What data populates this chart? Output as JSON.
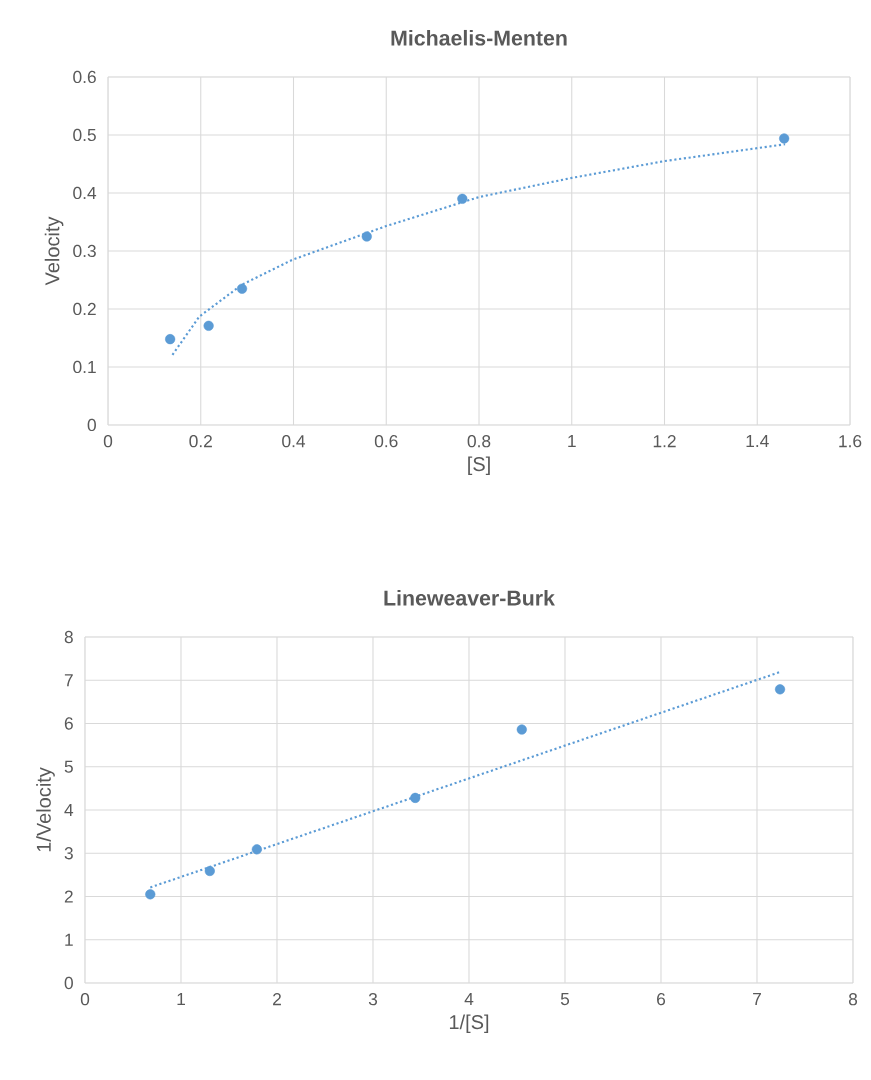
{
  "chart_data": [
    {
      "type": "scatter",
      "title": "Michaelis-Menten",
      "xlabel": "[S]",
      "ylabel": "Velocity",
      "xlim": [
        0,
        1.6
      ],
      "ylim": [
        0,
        0.6
      ],
      "xticks": [
        0,
        0.2,
        0.4,
        0.6,
        0.8,
        1,
        1.2,
        1.4,
        1.6
      ],
      "yticks": [
        0,
        0.1,
        0.2,
        0.3,
        0.4,
        0.5,
        0.6
      ],
      "grid": true,
      "marker": "circle",
      "series": [
        {
          "color": "#5b9bd5",
          "x": [
            0.134,
            0.217,
            0.289,
            0.558,
            0.764,
            1.458
          ],
          "values": [
            0.148,
            0.171,
            0.235,
            0.325,
            0.39,
            0.494
          ]
        },
        {
          "type": "line",
          "color": "#5b9bd5",
          "marker": "none",
          "line_style": "dotted",
          "x": [
            0.139,
            0.197,
            0.289,
            0.398,
            0.6,
            0.8,
            1.0,
            1.2,
            1.46
          ],
          "values": [
            0.121,
            0.187,
            0.242,
            0.285,
            0.343,
            0.393,
            0.426,
            0.455,
            0.484
          ]
        }
      ]
    },
    {
      "type": "scatter",
      "title": "Lineweaver-Burk",
      "xlabel": "1/[S]",
      "ylabel": "1/Velocity",
      "xlim": [
        0,
        8
      ],
      "ylim": [
        0,
        8
      ],
      "xticks": [
        0,
        1,
        2,
        3,
        4,
        5,
        6,
        7,
        8
      ],
      "yticks": [
        0,
        1,
        2,
        3,
        4,
        5,
        6,
        7,
        8
      ],
      "grid": true,
      "marker": "circle",
      "series": [
        {
          "color": "#5b9bd5",
          "x": [
            0.68,
            1.3,
            1.79,
            3.44,
            4.55,
            7.24
          ],
          "values": [
            2.05,
            2.59,
            3.09,
            4.28,
            5.86,
            6.79
          ]
        },
        {
          "type": "line",
          "color": "#5b9bd5",
          "marker": "none",
          "line_style": "dotted",
          "x": [
            0.68,
            7.24
          ],
          "values": [
            2.21,
            7.19
          ]
        }
      ]
    }
  ]
}
